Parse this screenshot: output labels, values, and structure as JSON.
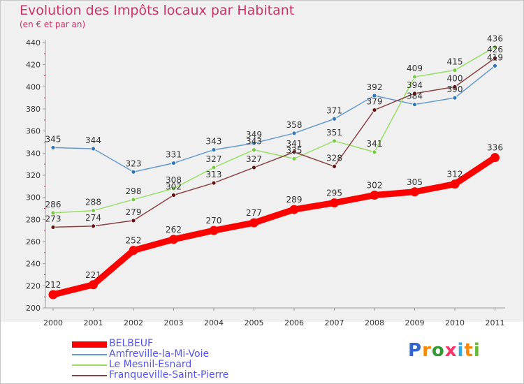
{
  "chart_data": {
    "type": "line",
    "title": "Evolution des Impôts locaux par Habitant",
    "subtitle": "(en € et par an)",
    "categories": [
      "2000",
      "2001",
      "2002",
      "2003",
      "2004",
      "2005",
      "2006",
      "2007",
      "2008",
      "2009",
      "2010",
      "2011"
    ],
    "ylim": [
      200,
      440
    ],
    "yticks": [
      200,
      220,
      240,
      260,
      280,
      300,
      320,
      340,
      360,
      380,
      400,
      420,
      440
    ],
    "grid": false,
    "legend_position": "bottom-left",
    "series": [
      {
        "name": "BELBEUF",
        "color": "#ff0000",
        "bold": true,
        "values": [
          212,
          221,
          252,
          262,
          270,
          277,
          289,
          295,
          302,
          305,
          312,
          336
        ]
      },
      {
        "name": "Amfreville-la-Mi-Voie",
        "color": "#6699cc",
        "marker": "#3377bb",
        "values": [
          345,
          344,
          323,
          331,
          343,
          349,
          358,
          371,
          392,
          384,
          390,
          419
        ]
      },
      {
        "name": "Le Mesnil-Esnard",
        "color": "#99dd66",
        "marker": "#77cc44",
        "values": [
          286,
          288,
          298,
          308,
          327,
          343,
          335,
          351,
          341,
          409,
          415,
          436
        ]
      },
      {
        "name": "Franqueville-Saint-Pierre",
        "color": "#884444",
        "marker": "#661111",
        "values": [
          273,
          274,
          279,
          302,
          313,
          327,
          341,
          328,
          379,
          394,
          400,
          426
        ]
      }
    ]
  },
  "logo": {
    "text": "Proxiti",
    "colors": [
      "#3366cc",
      "#ff8800",
      "#339933",
      "#ff3366",
      "#33aadd",
      "#ff8800",
      "#66bb33"
    ]
  }
}
